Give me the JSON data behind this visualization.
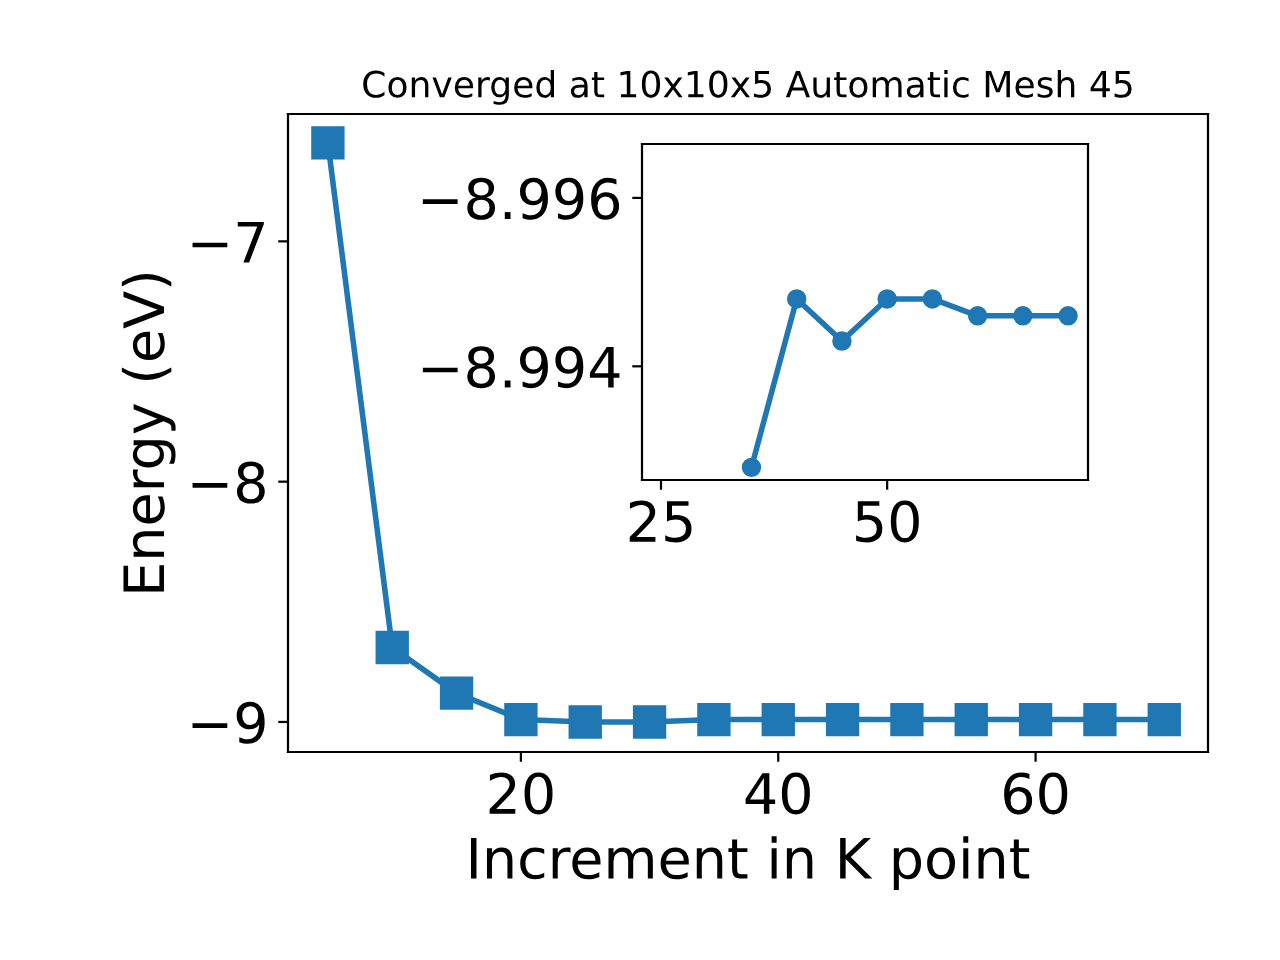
{
  "chart_data": [
    {
      "type": "line",
      "title": "Converged at 10x10x5 Automatic Mesh 45",
      "xlabel": "Increment in K point",
      "ylabel": "Energy (eV)",
      "x": [
        5,
        10,
        15,
        20,
        25,
        30,
        35,
        40,
        45,
        50,
        55,
        60,
        65,
        70
      ],
      "series": [
        {
          "color": "#1f77b4",
          "values": [
            -6.59,
            -8.69,
            -8.88,
            -8.99,
            -9.0,
            -9.0,
            -8.99,
            -8.99,
            -8.99,
            -8.99,
            -8.99,
            -8.99,
            -8.99,
            -8.99
          ]
        }
      ],
      "marker": "square",
      "line_style": "solid",
      "xlim": [
        1.9,
        73.4
      ],
      "ylim": [
        -9.125,
        -6.47
      ],
      "xticks": [
        20,
        40,
        60
      ],
      "yticks": [
        {
          "value": -9,
          "label": "−9"
        },
        {
          "value": -8,
          "label": "−8"
        },
        {
          "value": -7,
          "label": "−7"
        }
      ],
      "grid": false,
      "legend": false
    },
    {
      "type": "line",
      "x": [
        35,
        40,
        45,
        50,
        55,
        60,
        65,
        70
      ],
      "series": [
        {
          "color": "#1f77b4",
          "values": [
            -8.9928,
            -8.9948,
            -8.9943,
            -8.9948,
            -8.9948,
            -8.9946,
            -8.9946,
            -8.9946
          ]
        }
      ],
      "marker": "circle",
      "line_style": "solid",
      "xlim": [
        22.9,
        72.2
      ],
      "ylim": [
        -8.99265,
        -8.99664
      ],
      "xticks": [
        25,
        50
      ],
      "yticks": [
        {
          "value": -8.996,
          "label": "−8.996"
        },
        {
          "value": -8.994,
          "label": "−8.994"
        }
      ],
      "grid": false,
      "legend": false
    }
  ]
}
